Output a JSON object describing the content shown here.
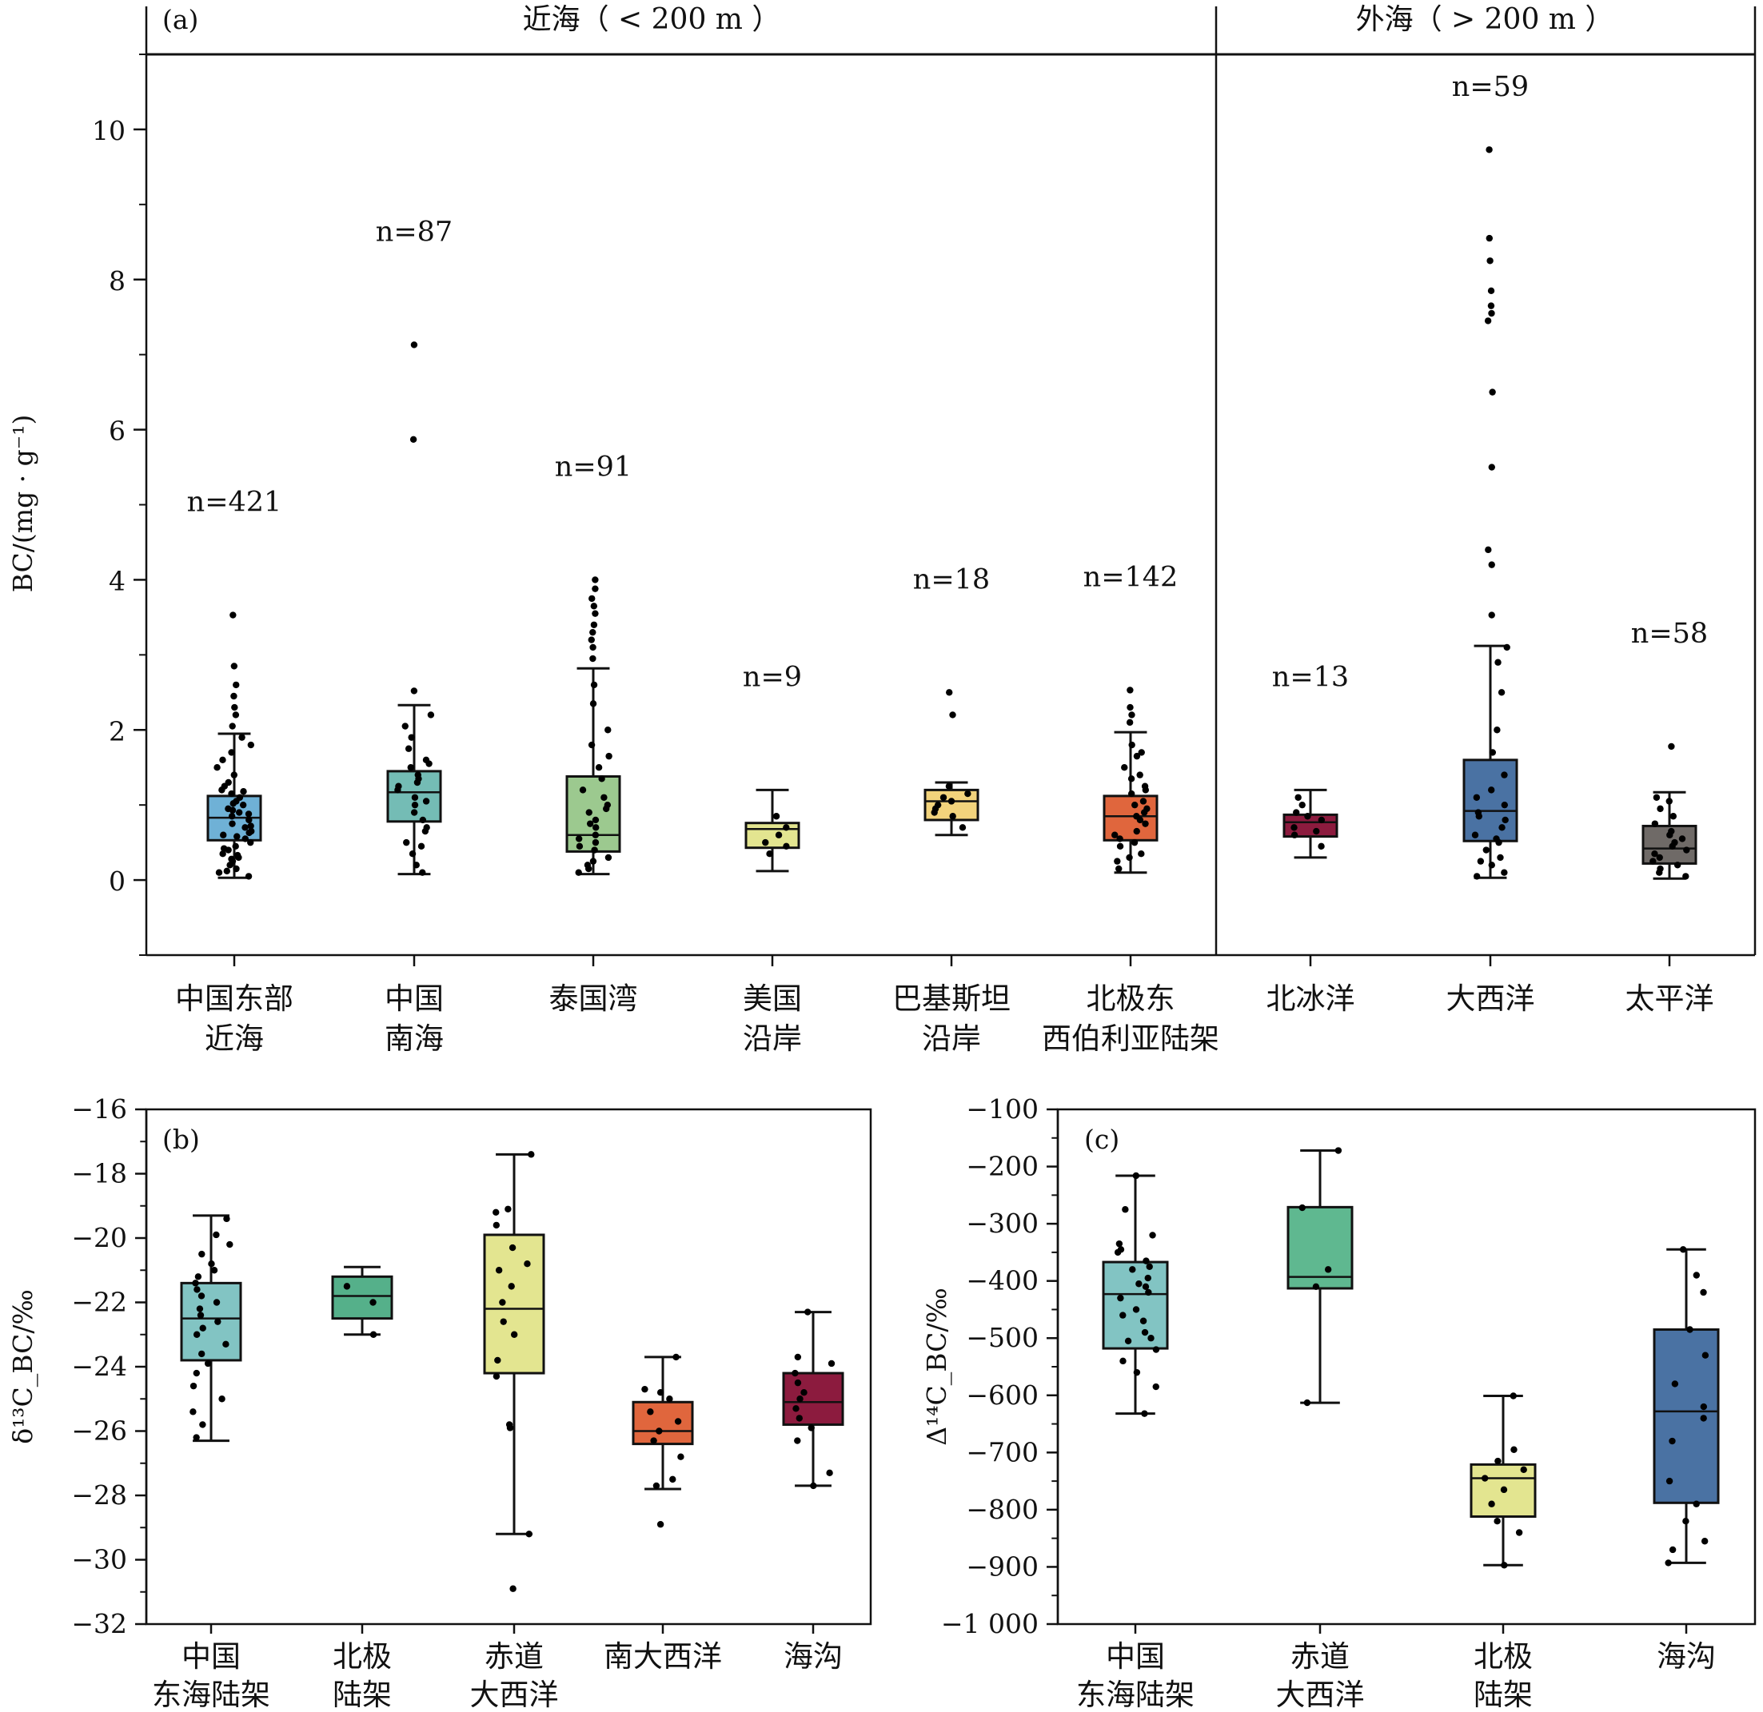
{
  "chart_data": [
    {
      "id": "a",
      "type": "box",
      "panel_label": "(a)",
      "ylabel": "BC/(mg · g⁻¹)",
      "ylim": [
        -1,
        11
      ],
      "yticks": [
        0,
        2,
        4,
        6,
        8,
        10
      ],
      "groups": [
        {
          "label": "近海（ < 200 m ）"
        },
        {
          "label": "外海（ > 200 m ）"
        }
      ],
      "categories": [
        {
          "line1": "中国东部",
          "line2": "近海",
          "n_label": "n=421",
          "n_value": 421,
          "color": "#6fb1d6",
          "whisker_low": 0.03,
          "q1": 0.53,
          "median": 0.83,
          "q3": 1.12,
          "whisker_high": 1.95,
          "outliers": [
            2.05,
            2.2,
            2.3,
            2.45,
            2.6,
            2.85,
            3.53
          ],
          "points": [
            0.05,
            0.1,
            0.15,
            0.2,
            0.25,
            0.3,
            0.35,
            0.4,
            0.45,
            0.5,
            0.55,
            0.6,
            0.65,
            0.7,
            0.75,
            0.8,
            0.85,
            0.9,
            0.95,
            1.0,
            1.05,
            1.1,
            1.15,
            1.2,
            1.3,
            1.4,
            1.5,
            1.6,
            1.7,
            1.8,
            1.9,
            0.12,
            0.28,
            0.42,
            0.58,
            0.72,
            0.88,
            1.02,
            1.18,
            0.33,
            0.63,
            0.93,
            1.25
          ]
        },
        {
          "line1": "中国",
          "line2": "南海",
          "n_label": "n=87",
          "n_value": 87,
          "color": "#74bcb5",
          "whisker_low": 0.08,
          "q1": 0.78,
          "median": 1.17,
          "q3": 1.45,
          "whisker_high": 2.33,
          "outliers": [
            2.52,
            5.87,
            7.13
          ],
          "points": [
            0.1,
            0.2,
            0.35,
            0.5,
            0.65,
            0.8,
            0.9,
            1.0,
            1.1,
            1.2,
            1.3,
            1.4,
            1.5,
            1.6,
            1.75,
            1.9,
            2.05,
            2.2,
            0.45,
            0.7,
            1.05,
            1.25,
            1.35,
            1.55
          ]
        },
        {
          "line1": "泰国湾",
          "line2": "",
          "n_label": "n=91",
          "n_value": 91,
          "color": "#9cc98f",
          "whisker_low": 0.08,
          "q1": 0.38,
          "median": 0.6,
          "q3": 1.38,
          "whisker_high": 2.82,
          "outliers": [
            2.95,
            3.1,
            3.2,
            3.3,
            3.4,
            3.55,
            3.65,
            3.75,
            3.88,
            4.0
          ],
          "points": [
            0.1,
            0.15,
            0.2,
            0.3,
            0.4,
            0.5,
            0.6,
            0.7,
            0.8,
            0.9,
            1.0,
            1.1,
            1.2,
            1.35,
            1.5,
            1.65,
            1.8,
            2.0,
            2.35,
            2.6,
            0.25,
            0.45,
            0.55,
            0.75,
            0.95
          ]
        },
        {
          "line1": "美国",
          "line2": "沿岸",
          "n_label": "n=9",
          "n_value": 9,
          "color": "#e3e590",
          "whisker_low": 0.12,
          "q1": 0.43,
          "median": 0.68,
          "q3": 0.76,
          "whisker_high": 1.2,
          "outliers": [],
          "points": [
            0.35,
            0.5,
            0.7,
            0.85,
            0.45,
            0.6
          ]
        },
        {
          "line1": "巴基斯坦",
          "line2": "沿岸",
          "n_label": "n=18",
          "n_value": 18,
          "color": "#f2d37c",
          "whisker_low": 0.6,
          "q1": 0.8,
          "median": 1.05,
          "q3": 1.2,
          "whisker_high": 1.3,
          "outliers": [
            2.2,
            2.5
          ],
          "points": [
            0.7,
            0.85,
            0.95,
            1.0,
            1.1,
            1.15,
            1.25,
            0.9,
            1.05
          ]
        },
        {
          "line1": "北极东",
          "line2": "西伯利亚陆架",
          "n_label": "n=142",
          "n_value": 142,
          "color": "#e0663d",
          "whisker_low": 0.1,
          "q1": 0.53,
          "median": 0.85,
          "q3": 1.12,
          "whisker_high": 1.97,
          "outliers": [
            2.1,
            2.2,
            2.3,
            2.53
          ],
          "points": [
            0.15,
            0.25,
            0.35,
            0.45,
            0.55,
            0.65,
            0.75,
            0.85,
            0.95,
            1.05,
            1.15,
            1.25,
            1.35,
            1.5,
            1.65,
            1.8,
            0.3,
            0.6,
            0.9,
            1.2,
            0.5,
            0.8,
            1.0,
            1.4,
            1.7
          ]
        },
        {
          "line1": "北冰洋",
          "line2": "",
          "n_label": "n=13",
          "n_value": 13,
          "color": "#8c1b3e",
          "whisker_low": 0.3,
          "q1": 0.58,
          "median": 0.77,
          "q3": 0.87,
          "whisker_high": 1.2,
          "outliers": [],
          "points": [
            0.45,
            0.6,
            0.7,
            0.8,
            0.9,
            1.0,
            1.1,
            0.65,
            0.85
          ]
        },
        {
          "line1": "大西洋",
          "line2": "",
          "n_label": "n=59",
          "n_value": 59,
          "color": "#4a72a3",
          "whisker_low": 0.03,
          "q1": 0.52,
          "median": 0.92,
          "q3": 1.6,
          "whisker_high": 3.12,
          "outliers": [
            3.53,
            4.2,
            4.4,
            5.5,
            6.5,
            7.45,
            7.55,
            7.65,
            7.85,
            8.25,
            8.55,
            9.73
          ],
          "points": [
            0.05,
            0.1,
            0.2,
            0.3,
            0.4,
            0.5,
            0.6,
            0.7,
            0.8,
            0.9,
            1.0,
            1.1,
            1.2,
            1.4,
            1.7,
            2.0,
            2.5,
            2.9,
            3.1,
            0.25,
            0.55,
            0.85
          ]
        },
        {
          "line1": "太平洋",
          "line2": "",
          "n_label": "n=58",
          "n_value": 58,
          "color": "#6f6a67",
          "whisker_low": 0.02,
          "q1": 0.22,
          "median": 0.42,
          "q3": 0.72,
          "whisker_high": 1.17,
          "outliers": [
            1.78
          ],
          "points": [
            0.05,
            0.1,
            0.15,
            0.25,
            0.35,
            0.45,
            0.55,
            0.65,
            0.75,
            0.85,
            0.95,
            1.05,
            1.1,
            0.3,
            0.5,
            0.6,
            0.4,
            0.2
          ]
        }
      ]
    },
    {
      "id": "b",
      "type": "box",
      "panel_label": "(b)",
      "ylabel": "δ¹³C_BC/‰",
      "ylim": [
        -32,
        -16
      ],
      "yticks": [
        -32,
        -30,
        -28,
        -26,
        -24,
        -22,
        -20,
        -18,
        -16
      ],
      "ytick_labels": [
        "−32",
        "−30",
        "−28",
        "−26",
        "−24",
        "−22",
        "−20",
        "−18",
        "−16"
      ],
      "categories": [
        {
          "line1": "中国",
          "line2": "东海陆架",
          "color": "#82c4c3",
          "whisker_low": -26.3,
          "q1": -23.8,
          "median": -22.5,
          "q3": -21.4,
          "whisker_high": -19.3,
          "outliers": [],
          "points": [
            -26.2,
            -25.8,
            -25.4,
            -25.0,
            -24.6,
            -24.2,
            -23.9,
            -23.6,
            -23.3,
            -23.0,
            -22.8,
            -22.6,
            -22.4,
            -22.2,
            -22.0,
            -21.8,
            -21.6,
            -21.4,
            -21.2,
            -21.0,
            -20.8,
            -20.5,
            -20.2,
            -19.9,
            -19.4
          ]
        },
        {
          "line1": "北极",
          "line2": "陆架",
          "color": "#55b08a",
          "whisker_low": -23.0,
          "q1": -22.5,
          "median": -21.8,
          "q3": -21.2,
          "whisker_high": -20.9,
          "outliers": [],
          "points": [
            -23.0,
            -22.0,
            -21.5
          ]
        },
        {
          "line1": "赤道",
          "line2": "大西洋",
          "color": "#e3e590",
          "whisker_low": -29.2,
          "q1": -24.2,
          "median": -22.2,
          "q3": -19.9,
          "whisker_high": -17.4,
          "outliers": [
            -30.9
          ],
          "points": [
            -29.2,
            -25.8,
            -25.9,
            -24.3,
            -23.8,
            -23.0,
            -22.6,
            -22.0,
            -21.5,
            -21.0,
            -20.8,
            -20.3,
            -19.6,
            -19.2,
            -19.1,
            -17.4
          ]
        },
        {
          "line1": "南大西洋",
          "line2": "",
          "color": "#e0663d",
          "whisker_low": -27.8,
          "q1": -26.4,
          "median": -26.0,
          "q3": -25.1,
          "whisker_high": -23.7,
          "outliers": [
            -28.9
          ],
          "points": [
            -27.7,
            -27.5,
            -26.8,
            -26.3,
            -26.0,
            -25.7,
            -25.4,
            -25.0,
            -24.8,
            -24.7,
            -23.7
          ]
        },
        {
          "line1": "海沟",
          "line2": "",
          "color": "#8c1b3e",
          "whisker_low": -27.7,
          "q1": -25.8,
          "median": -25.1,
          "q3": -24.2,
          "whisker_high": -22.3,
          "outliers": [],
          "points": [
            -27.7,
            -27.3,
            -26.3,
            -25.9,
            -25.6,
            -25.3,
            -25.0,
            -24.8,
            -24.5,
            -24.2,
            -23.9,
            -23.7,
            -22.3
          ]
        }
      ]
    },
    {
      "id": "c",
      "type": "box",
      "panel_label": "(c)",
      "ylabel": "Δ¹⁴C_BC/‰",
      "ylim": [
        -1000,
        -100
      ],
      "yticks": [
        -1000,
        -900,
        -800,
        -700,
        -600,
        -500,
        -400,
        -300,
        -200,
        -100
      ],
      "ytick_labels": [
        "−1 000",
        "−900",
        "−800",
        "−700",
        "−600",
        "−500",
        "−400",
        "−300",
        "−200",
        "−100"
      ],
      "categories": [
        {
          "line1": "中国",
          "line2": "东海陆架",
          "color": "#82c4c3",
          "whisker_low": -632,
          "q1": -518,
          "median": -423,
          "q3": -367,
          "whisker_high": -216,
          "outliers": [],
          "points": [
            -632,
            -585,
            -560,
            -540,
            -520,
            -505,
            -490,
            -470,
            -450,
            -430,
            -420,
            -410,
            -395,
            -380,
            -365,
            -350,
            -335,
            -320,
            -275,
            -216,
            -500,
            -460,
            -405,
            -375,
            -345
          ]
        },
        {
          "line1": "赤道",
          "line2": "大西洋",
          "color": "#5fb890",
          "whisker_low": -613,
          "q1": -413,
          "median": -393,
          "q3": -271,
          "whisker_high": -172,
          "outliers": [],
          "points": [
            -613,
            -410,
            -380,
            -272,
            -172
          ]
        },
        {
          "line1": "北极",
          "line2": "陆架",
          "color": "#e3e590",
          "whisker_low": -897,
          "q1": -812,
          "median": -745,
          "q3": -721,
          "whisker_high": -601,
          "outliers": [],
          "points": [
            -897,
            -840,
            -820,
            -790,
            -765,
            -745,
            -730,
            -715,
            -695,
            -601
          ]
        },
        {
          "line1": "海沟",
          "line2": "",
          "color": "#4a72a3",
          "whisker_low": -893,
          "q1": -788,
          "median": -628,
          "q3": -485,
          "whisker_high": -345,
          "outliers": [],
          "points": [
            -893,
            -870,
            -855,
            -820,
            -790,
            -750,
            -680,
            -640,
            -620,
            -580,
            -530,
            -485,
            -420,
            -390,
            -345
          ]
        }
      ]
    }
  ],
  "panel_a_labels": {
    "panel": "(a)",
    "group_near": "近海（ < 200 m ）",
    "group_far": "外海（ > 200 m ）"
  }
}
